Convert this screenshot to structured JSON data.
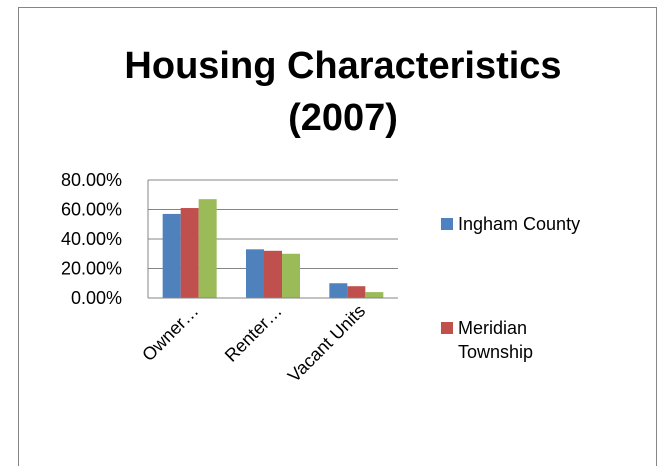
{
  "chart_data": {
    "type": "bar",
    "title": "Housing Characteristics (2007)",
    "categories": [
      "Owner…",
      "Renter…",
      "Vacant Units"
    ],
    "series": [
      {
        "name": "Ingham County",
        "color": "#4f81bd",
        "values": [
          57,
          33,
          10
        ]
      },
      {
        "name": "Meridian Township",
        "color": "#c0504d",
        "values": [
          61,
          32,
          8
        ]
      },
      {
        "color": "#9bbb59",
        "values": [
          67,
          30,
          4
        ]
      }
    ],
    "ylim": [
      0,
      80
    ],
    "yticks": [
      {
        "value": 0,
        "label": "0.00%"
      },
      {
        "value": 20,
        "label": "20.00%"
      },
      {
        "value": 40,
        "label": "40.00%"
      },
      {
        "value": 60,
        "label": "60.00%"
      },
      {
        "value": 80,
        "label": "80.00%"
      }
    ],
    "grid": true,
    "legend": "right"
  }
}
